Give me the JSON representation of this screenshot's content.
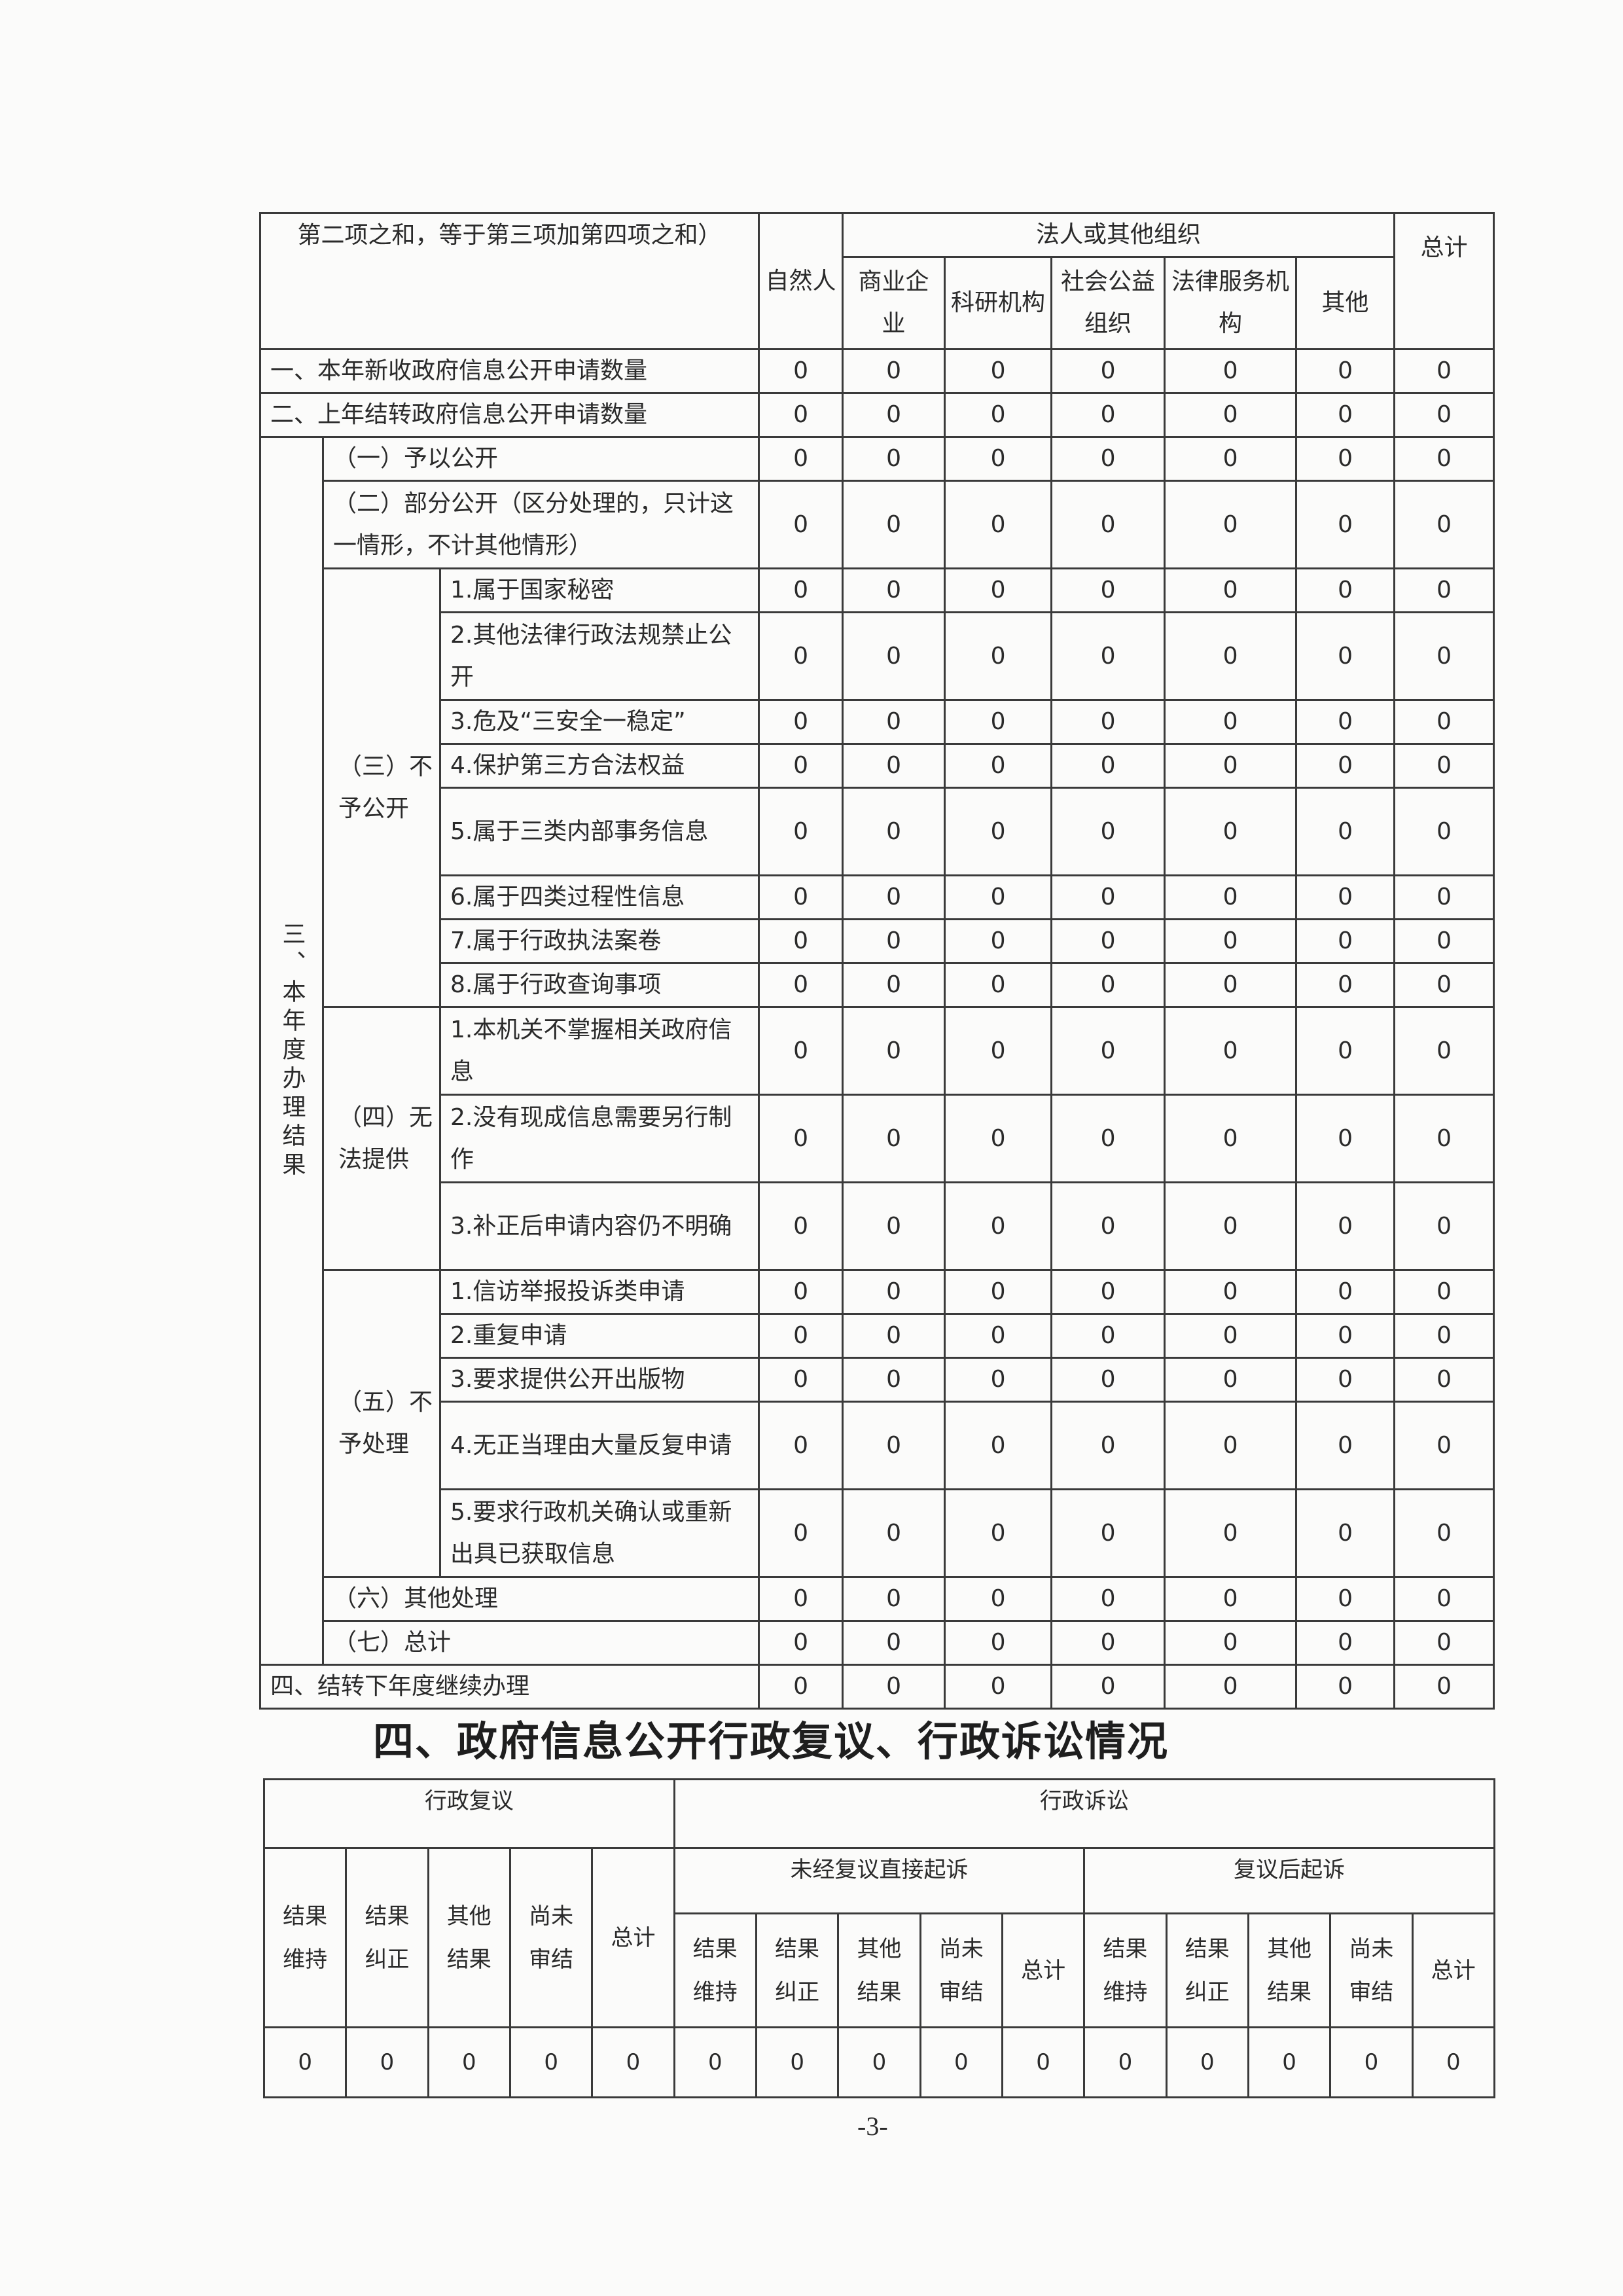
{
  "table1": {
    "header": {
      "corner": "第二项之和，等于第三项加第四项之和）",
      "natural_person": "自然人",
      "legal_org": "法人或其他组织",
      "sub": [
        "商业企业",
        "科研机构",
        "社会公益组织",
        "法律服务机构",
        "其他"
      ],
      "total": "总计"
    },
    "row1": {
      "label": "一、本年新收政府信息公开申请数量",
      "values": [
        "0",
        "0",
        "0",
        "0",
        "0",
        "0",
        "0"
      ]
    },
    "row2": {
      "label": "二、上年结转政府信息公开申请数量",
      "values": [
        "0",
        "0",
        "0",
        "0",
        "0",
        "0",
        "0"
      ]
    },
    "section3": {
      "label": "三、本年度办理结果",
      "items": [
        {
          "label": "（一）予以公开",
          "values": [
            "0",
            "0",
            "0",
            "0",
            "0",
            "0",
            "0"
          ]
        },
        {
          "label": "（二）部分公开（区分处理的，只计这一情形，不计其他情形）",
          "values": [
            "0",
            "0",
            "0",
            "0",
            "0",
            "0",
            "0"
          ]
        },
        {
          "group": "（三）不予公开",
          "items": [
            {
              "label": "1.属于国家秘密",
              "values": [
                "0",
                "0",
                "0",
                "0",
                "0",
                "0",
                "0"
              ]
            },
            {
              "label": "2.其他法律行政法规禁止公开",
              "values": [
                "0",
                "0",
                "0",
                "0",
                "0",
                "0",
                "0"
              ]
            },
            {
              "label": "3.危及“三安全一稳定”",
              "values": [
                "0",
                "0",
                "0",
                "0",
                "0",
                "0",
                "0"
              ]
            },
            {
              "label": "4.保护第三方合法权益",
              "values": [
                "0",
                "0",
                "0",
                "0",
                "0",
                "0",
                "0"
              ]
            },
            {
              "label": "5.属于三类内部事务信息",
              "values": [
                "0",
                "0",
                "0",
                "0",
                "0",
                "0",
                "0"
              ]
            },
            {
              "label": "6.属于四类过程性信息",
              "values": [
                "0",
                "0",
                "0",
                "0",
                "0",
                "0",
                "0"
              ]
            },
            {
              "label": "7.属于行政执法案卷",
              "values": [
                "0",
                "0",
                "0",
                "0",
                "0",
                "0",
                "0"
              ]
            },
            {
              "label": "8.属于行政查询事项",
              "values": [
                "0",
                "0",
                "0",
                "0",
                "0",
                "0",
                "0"
              ]
            }
          ]
        },
        {
          "group": "（四）无法提供",
          "items": [
            {
              "label": "1.本机关不掌握相关政府信息",
              "values": [
                "0",
                "0",
                "0",
                "0",
                "0",
                "0",
                "0"
              ]
            },
            {
              "label": "2.没有现成信息需要另行制作",
              "values": [
                "0",
                "0",
                "0",
                "0",
                "0",
                "0",
                "0"
              ]
            },
            {
              "label": "3.补正后申请内容仍不明确",
              "values": [
                "0",
                "0",
                "0",
                "0",
                "0",
                "0",
                "0"
              ]
            }
          ]
        },
        {
          "group": "（五）不予处理",
          "items": [
            {
              "label": "1.信访举报投诉类申请",
              "values": [
                "0",
                "0",
                "0",
                "0",
                "0",
                "0",
                "0"
              ]
            },
            {
              "label": "2.重复申请",
              "values": [
                "0",
                "0",
                "0",
                "0",
                "0",
                "0",
                "0"
              ]
            },
            {
              "label": "3.要求提供公开出版物",
              "values": [
                "0",
                "0",
                "0",
                "0",
                "0",
                "0",
                "0"
              ]
            },
            {
              "label": "4.无正当理由大量反复申请",
              "values": [
                "0",
                "0",
                "0",
                "0",
                "0",
                "0",
                "0"
              ]
            },
            {
              "label": "5.要求行政机关确认或重新出具已获取信息",
              "values": [
                "0",
                "0",
                "0",
                "0",
                "0",
                "0",
                "0"
              ]
            }
          ]
        },
        {
          "label": "（六）其他处理",
          "values": [
            "0",
            "0",
            "0",
            "0",
            "0",
            "0",
            "0"
          ]
        },
        {
          "label": "（七）总计",
          "values": [
            "0",
            "0",
            "0",
            "0",
            "0",
            "0",
            "0"
          ]
        }
      ]
    },
    "row4": {
      "label": "四、结转下年度继续办理",
      "values": [
        "0",
        "0",
        "0",
        "0",
        "0",
        "0",
        "0"
      ]
    }
  },
  "section4": {
    "title": "四、政府信息公开行政复议、行政诉讼情况",
    "review": {
      "label": "行政复议",
      "cols": [
        "结果维持",
        "结果纠正",
        "其他结果",
        "尚未审结",
        "总计"
      ],
      "values": [
        "0",
        "0",
        "0",
        "0",
        "0"
      ]
    },
    "litigation": {
      "label": "行政诉讼",
      "direct": {
        "label": "未经复议直接起诉",
        "cols": [
          "结果维持",
          "结果纠正",
          "其他结果",
          "尚未审结",
          "总计"
        ],
        "values": [
          "0",
          "0",
          "0",
          "0",
          "0"
        ]
      },
      "after_review": {
        "label": "复议后起诉",
        "cols": [
          "结果维持",
          "结果纠正",
          "其他结果",
          "尚未审结",
          "总计"
        ],
        "values": [
          "0",
          "0",
          "0",
          "0",
          "0"
        ]
      }
    }
  },
  "page_number": "-3-"
}
